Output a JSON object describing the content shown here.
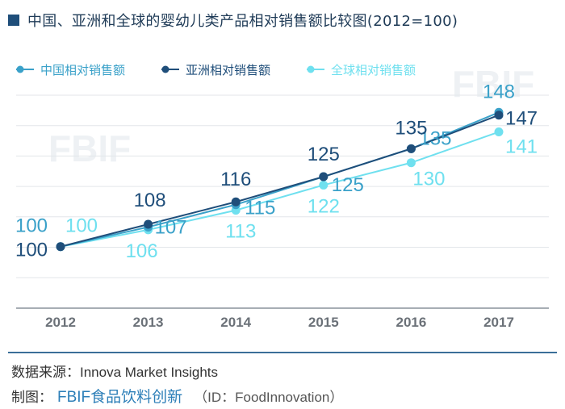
{
  "title": "中国、亚洲和全球的婴幼儿类产品相对销售额比较图(2012=100)",
  "source": "数据来源：Innova Market Insights",
  "credit": {
    "prefix": "制图：",
    "brand": "FBIF食品饮料创新",
    "id": "（ID：FoodInnovation）"
  },
  "watermark": "FBIF",
  "chart_data": {
    "type": "line",
    "x": [
      "2012",
      "2013",
      "2014",
      "2015",
      "2016",
      "2017"
    ],
    "series": [
      {
        "name": "中国相对销售额",
        "color": "#3aa1c9",
        "values": [
          100,
          107,
          115,
          125,
          135,
          148
        ]
      },
      {
        "name": "亚洲相对销售额",
        "color": "#1f4e7a",
        "values": [
          100,
          108,
          116,
          125,
          135,
          147
        ]
      },
      {
        "name": "全球相对销售额",
        "color": "#6fe0ef",
        "values": [
          100,
          106,
          113,
          122,
          130,
          141
        ]
      }
    ],
    "ylim": [
      78,
      155
    ],
    "grid": true,
    "legend": "top-left",
    "xlabel": "",
    "ylabel": ""
  }
}
